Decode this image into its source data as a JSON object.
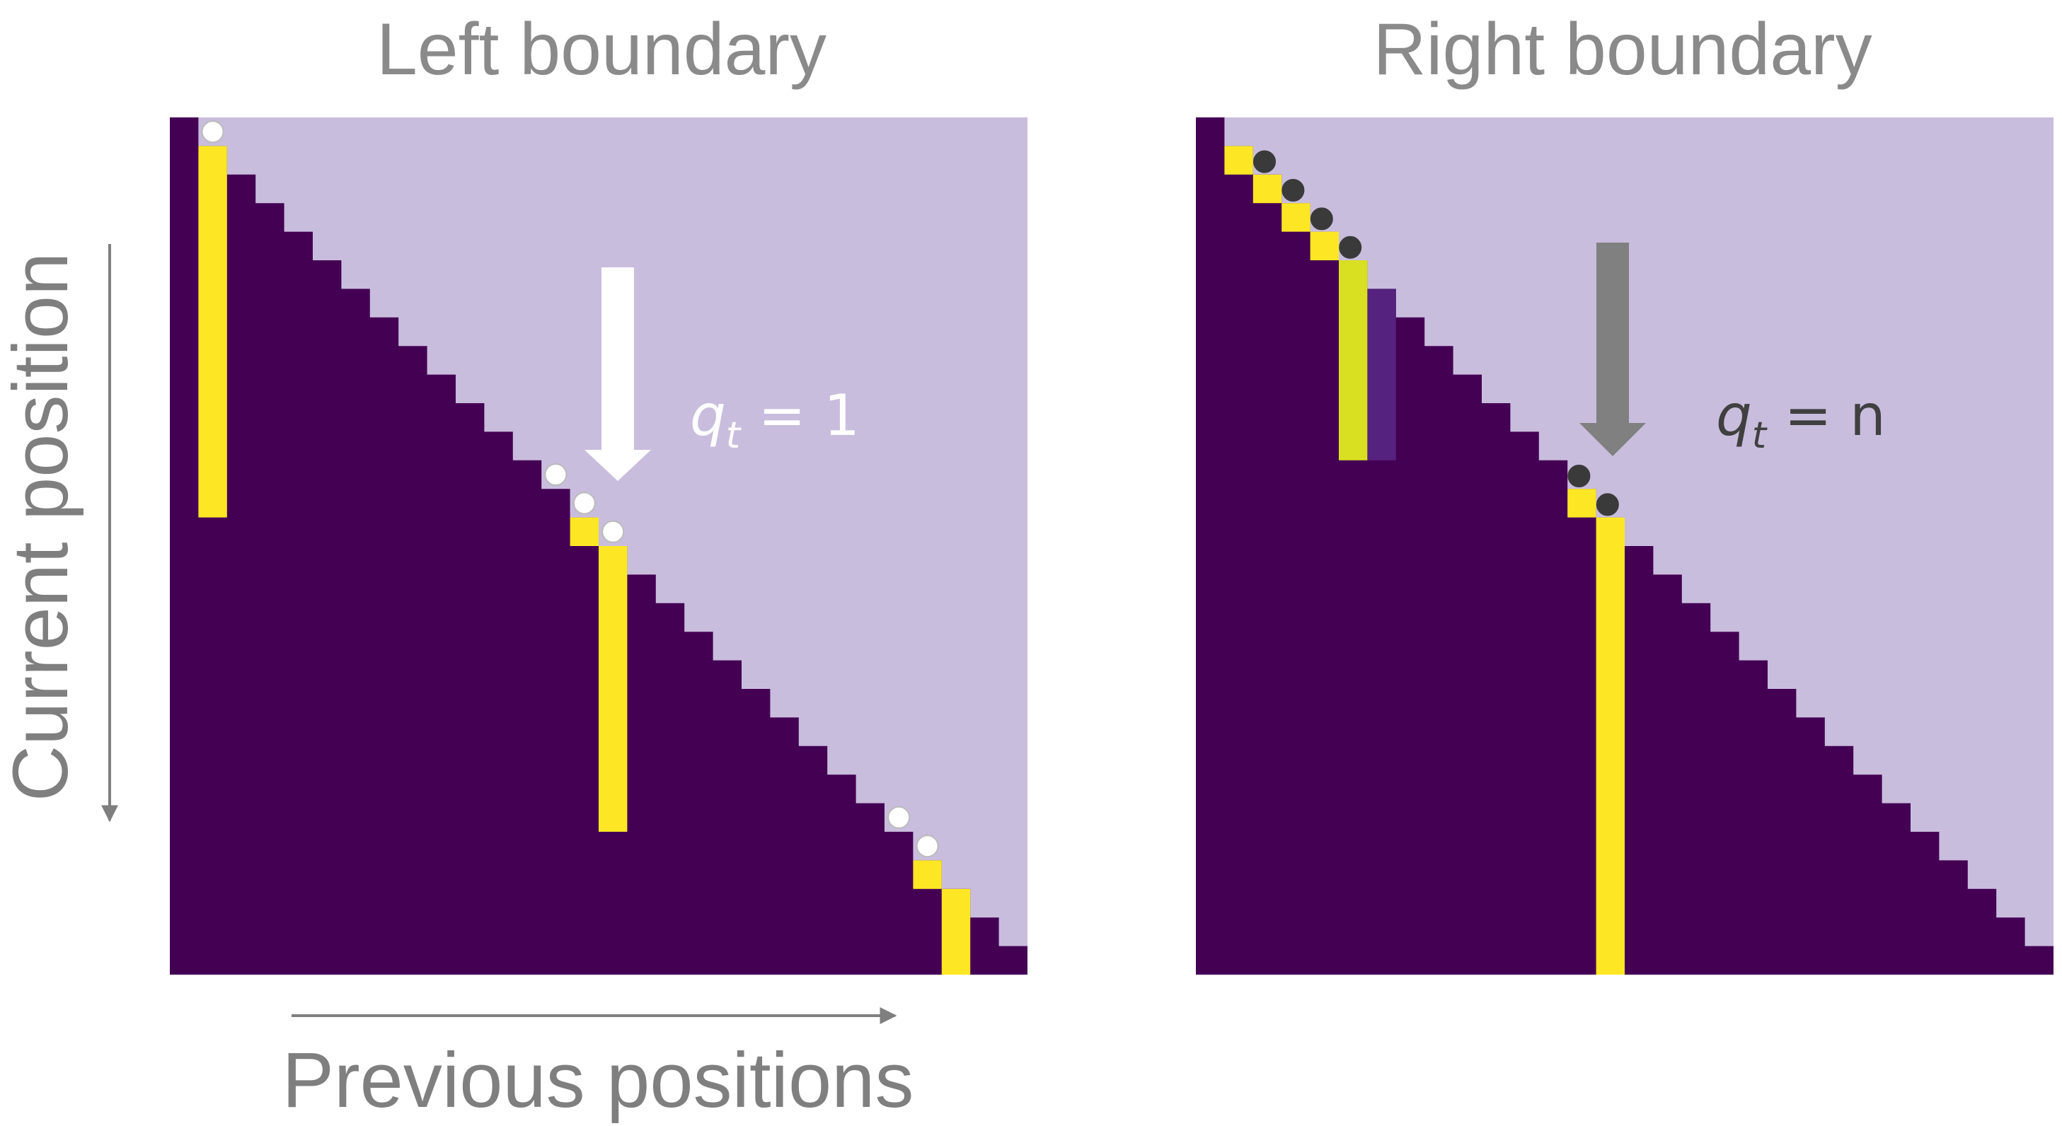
{
  "titles": {
    "left": "Left boundary",
    "right": "Right boundary"
  },
  "axes": {
    "y_label": "Current position",
    "x_label": "Previous positions"
  },
  "annotations": {
    "left": {
      "var": "q",
      "sub": "t",
      "rest": " = 1",
      "color": "#ffffff"
    },
    "right": {
      "var": "q",
      "sub": "t",
      "rest": " = n",
      "color": "#404040"
    }
  },
  "colors": {
    "masked": "#c9bddd",
    "attend": "#440154",
    "highlight": "#fde725",
    "faded_highlight": "#d9e021",
    "white_dot": "#ffffff",
    "dark_dot": "#3a3a3a",
    "axis_arrow": "#7f7f7f"
  },
  "matrix_size": 30
}
